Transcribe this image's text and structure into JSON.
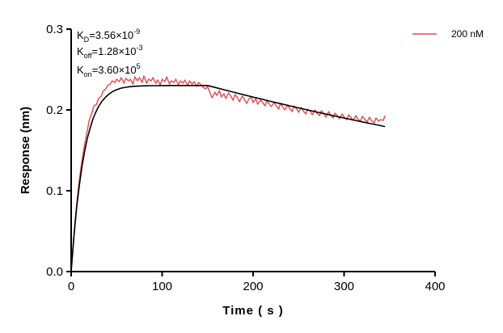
{
  "chart_data": {
    "type": "line",
    "title": "",
    "xlabel": "Time ( s )",
    "ylabel": "Response (nm)",
    "xlim": [
      0,
      400
    ],
    "ylim": [
      0.0,
      0.3
    ],
    "xticks": [
      0,
      100,
      200,
      300,
      400
    ],
    "xtick_labels": [
      "0",
      "100",
      "200",
      "300",
      "400"
    ],
    "yticks": [
      0.0,
      0.1,
      0.2,
      0.3
    ],
    "ytick_labels": [
      "0.0",
      "0.1",
      "0.2",
      "0.3"
    ],
    "grid": false,
    "legend_position": "top-right",
    "annotations": [
      {
        "base": "K",
        "sub": "D",
        "value": "=3.56×10",
        "sup": "-9"
      },
      {
        "base": "K",
        "sub": "off",
        "value": "=1.28×10",
        "sup": "-3"
      },
      {
        "base": "K",
        "sub": "on",
        "value": "=3.60×10",
        "sup": "5"
      }
    ],
    "series": [
      {
        "name": "200 nM",
        "color": "#e8474a",
        "x": [
          0,
          2,
          4,
          6,
          8,
          10,
          12,
          15,
          18,
          20,
          23,
          25,
          28,
          30,
          33,
          35,
          38,
          40,
          43,
          45,
          48,
          50,
          53,
          55,
          58,
          60,
          63,
          65,
          68,
          70,
          73,
          75,
          78,
          80,
          83,
          85,
          88,
          90,
          93,
          95,
          98,
          100,
          103,
          105,
          108,
          110,
          113,
          115,
          118,
          120,
          123,
          125,
          128,
          130,
          133,
          135,
          138,
          140,
          143,
          145,
          148,
          150,
          153,
          155,
          158,
          160,
          163,
          165,
          168,
          170,
          173,
          175,
          178,
          180,
          183,
          185,
          188,
          190,
          193,
          195,
          198,
          200,
          203,
          205,
          208,
          210,
          213,
          215,
          218,
          220,
          223,
          225,
          228,
          230,
          233,
          235,
          238,
          240,
          243,
          245,
          248,
          250,
          253,
          255,
          258,
          260,
          263,
          265,
          268,
          270,
          273,
          275,
          278,
          280,
          283,
          285,
          288,
          290,
          293,
          295,
          298,
          300,
          303,
          305,
          308,
          310,
          313,
          315,
          318,
          320,
          323,
          325,
          328,
          330,
          333,
          335,
          338,
          340,
          343,
          345
        ],
        "values": [
          0.0,
          0.031,
          0.059,
          0.082,
          0.104,
          0.122,
          0.138,
          0.159,
          0.176,
          0.188,
          0.197,
          0.205,
          0.207,
          0.214,
          0.217,
          0.223,
          0.226,
          0.23,
          0.232,
          0.236,
          0.234,
          0.238,
          0.235,
          0.24,
          0.233,
          0.239,
          0.236,
          0.238,
          0.232,
          0.241,
          0.236,
          0.24,
          0.234,
          0.242,
          0.233,
          0.238,
          0.236,
          0.24,
          0.233,
          0.237,
          0.231,
          0.238,
          0.235,
          0.241,
          0.232,
          0.236,
          0.234,
          0.238,
          0.231,
          0.236,
          0.233,
          0.237,
          0.23,
          0.236,
          0.232,
          0.235,
          0.229,
          0.234,
          0.231,
          0.228,
          0.226,
          0.229,
          0.22,
          0.215,
          0.222,
          0.218,
          0.224,
          0.216,
          0.22,
          0.214,
          0.221,
          0.218,
          0.212,
          0.219,
          0.215,
          0.21,
          0.217,
          0.214,
          0.208,
          0.213,
          0.216,
          0.209,
          0.214,
          0.207,
          0.212,
          0.21,
          0.205,
          0.211,
          0.207,
          0.204,
          0.209,
          0.206,
          0.201,
          0.208,
          0.203,
          0.2,
          0.206,
          0.202,
          0.198,
          0.205,
          0.201,
          0.197,
          0.203,
          0.199,
          0.195,
          0.201,
          0.198,
          0.194,
          0.2,
          0.196,
          0.193,
          0.199,
          0.195,
          0.191,
          0.198,
          0.194,
          0.19,
          0.196,
          0.192,
          0.189,
          0.195,
          0.191,
          0.188,
          0.194,
          0.19,
          0.187,
          0.193,
          0.189,
          0.186,
          0.192,
          0.188,
          0.185,
          0.191,
          0.187,
          0.184,
          0.19,
          0.186,
          0.188,
          0.187,
          0.193
        ]
      },
      {
        "name": "",
        "color": "#000000",
        "x": [
          0,
          3,
          6,
          9,
          12,
          15,
          18,
          21,
          24,
          27,
          30,
          34,
          38,
          42,
          46,
          50,
          55,
          60,
          65,
          70,
          80,
          90,
          100,
          110,
          120,
          130,
          140,
          150,
          160,
          170,
          180,
          190,
          200,
          210,
          220,
          230,
          240,
          250,
          260,
          270,
          280,
          290,
          300,
          310,
          320,
          330,
          340,
          345
        ],
        "values": [
          0.0,
          0.043,
          0.079,
          0.107,
          0.131,
          0.15,
          0.166,
          0.178,
          0.189,
          0.197,
          0.204,
          0.211,
          0.216,
          0.22,
          0.223,
          0.225,
          0.227,
          0.228,
          0.2288,
          0.2293,
          0.2298,
          0.23,
          0.2301,
          0.2302,
          0.2302,
          0.2302,
          0.2302,
          0.2302,
          0.2273,
          0.2244,
          0.2215,
          0.2187,
          0.2159,
          0.2132,
          0.2104,
          0.2078,
          0.2051,
          0.2025,
          0.1999,
          0.1974,
          0.1949,
          0.1924,
          0.19,
          0.1876,
          0.1852,
          0.1829,
          0.1806,
          0.1794
        ]
      }
    ]
  }
}
